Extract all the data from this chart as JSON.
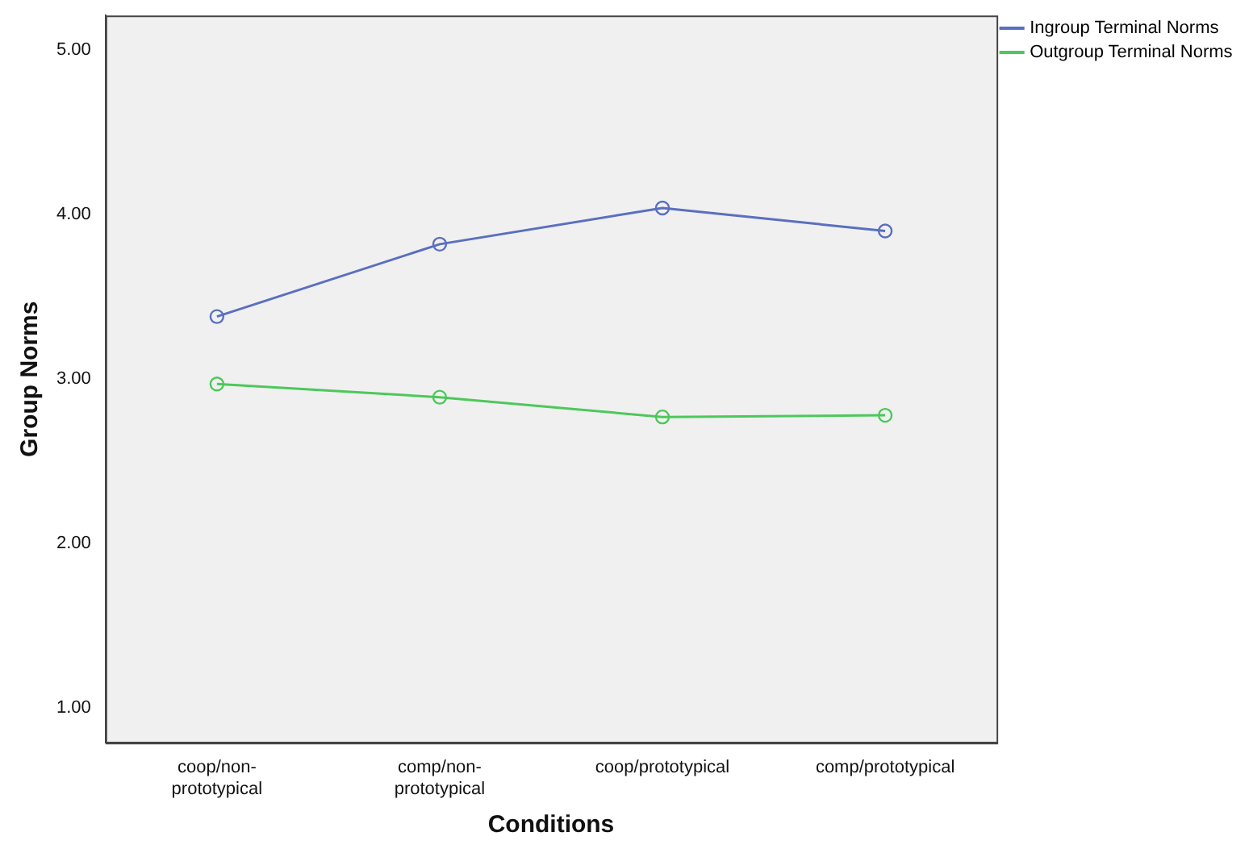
{
  "chart_data": {
    "type": "line",
    "xlabel": "Conditions",
    "ylabel": "Group Norms",
    "categories": [
      "coop/non-prototypical",
      "comp/non-prototypical",
      "coop/prototypical",
      "comp/prototypical"
    ],
    "series": [
      {
        "name": "Ingroup Terminal Norms",
        "color": "#5a6fc0",
        "values": [
          3.38,
          3.82,
          4.04,
          3.9
        ]
      },
      {
        "name": "Outgroup Terminal Norms",
        "color": "#4cc85a",
        "values": [
          2.97,
          2.89,
          2.77,
          2.78
        ]
      }
    ],
    "ylim": [
      0.79,
      5.21
    ],
    "yticks": [
      {
        "value": 1,
        "label": "1.00"
      },
      {
        "value": 2,
        "label": "2.00"
      },
      {
        "value": 3,
        "label": "3.00"
      },
      {
        "value": 4,
        "label": "4.00"
      },
      {
        "value": 5,
        "label": "5.00"
      }
    ],
    "grid": false,
    "legend": "top right",
    "marker": "circle",
    "line_style": "solid"
  }
}
